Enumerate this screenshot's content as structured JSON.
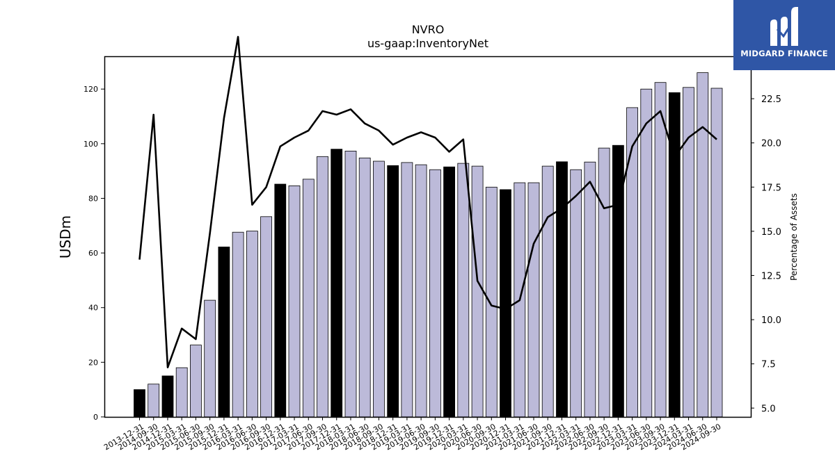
{
  "chart_data": {
    "type": "bar",
    "title": "NVRO",
    "subtitle": "us-gaap:InventoryNet",
    "ylabel_left": "USDm",
    "ylabel_right": "Percentage of Assets",
    "ylim_left": [
      0,
      132
    ],
    "ylim_right": [
      4.5,
      24.9
    ],
    "yticks_left": [
      0,
      20,
      40,
      60,
      80,
      100,
      120
    ],
    "yticks_right": [
      5.0,
      7.5,
      10.0,
      12.5,
      15.0,
      17.5,
      20.0,
      22.5
    ],
    "categories": [
      "2013-12-31",
      "2014-09-30",
      "2014-12-31",
      "2015-03-31",
      "2015-06-30",
      "2015-09-30",
      "2015-12-31",
      "2016-03-31",
      "2016-06-30",
      "2016-09-30",
      "2016-12-31",
      "2017-03-31",
      "2017-06-30",
      "2017-09-30",
      "2017-12-31",
      "2018-03-31",
      "2018-06-30",
      "2018-09-30",
      "2018-12-31",
      "2019-03-31",
      "2019-06-30",
      "2019-09-30",
      "2019-12-31",
      "2020-03-31",
      "2020-06-30",
      "2020-09-30",
      "2020-12-31",
      "2021-03-31",
      "2021-06-30",
      "2021-09-30",
      "2021-12-31",
      "2022-03-31",
      "2022-06-30",
      "2022-09-30",
      "2022-12-31",
      "2023-03-31",
      "2023-06-30",
      "2023-09-30",
      "2023-12-31",
      "2024-03-31",
      "2024-06-30",
      "2024-09-30"
    ],
    "series": [
      {
        "type": "bar",
        "axis": "left",
        "values": [
          10.0,
          12.0,
          15.0,
          18.0,
          26.3,
          42.7,
          62.2,
          67.6,
          68.0,
          73.3,
          85.2,
          84.6,
          87.0,
          95.3,
          98.0,
          97.3,
          94.8,
          93.6,
          92.0,
          93.1,
          92.3,
          90.5,
          91.5,
          92.8,
          91.8,
          84.1,
          83.2,
          85.7,
          85.7,
          91.8,
          93.4,
          90.5,
          93.3,
          98.4,
          99.4,
          113.2,
          120.0,
          122.4,
          118.7,
          120.6,
          126.0,
          120.3
        ],
        "colors": {
          "annual": "#000000",
          "quarterly": "#bcbad9"
        },
        "annual_flags": [
          true,
          false,
          true,
          false,
          false,
          false,
          true,
          false,
          false,
          false,
          true,
          false,
          false,
          false,
          true,
          false,
          false,
          false,
          true,
          false,
          false,
          false,
          true,
          false,
          false,
          false,
          true,
          false,
          false,
          false,
          true,
          false,
          false,
          false,
          true,
          false,
          false,
          false,
          true,
          false,
          false,
          false
        ]
      },
      {
        "type": "line",
        "axis": "right",
        "color": "#000000",
        "values": [
          13.4,
          21.6,
          7.3,
          9.5,
          8.9,
          14.9,
          21.4,
          26.0,
          16.5,
          17.5,
          19.8,
          20.3,
          20.7,
          21.8,
          21.6,
          21.9,
          21.1,
          20.7,
          19.9,
          20.3,
          20.6,
          20.3,
          19.5,
          20.2,
          12.2,
          10.8,
          10.6,
          11.1,
          14.3,
          15.8,
          16.3,
          17.0,
          17.8,
          16.3,
          16.5,
          19.8,
          21.1,
          21.8,
          19.2,
          20.3,
          20.9,
          20.2
        ]
      }
    ],
    "legend": "none",
    "grid": false
  },
  "brand": {
    "name": "MIDGARD FINANCE",
    "logo_bg": "#2f56a6",
    "logo_icon": "midgard-m-icon"
  }
}
